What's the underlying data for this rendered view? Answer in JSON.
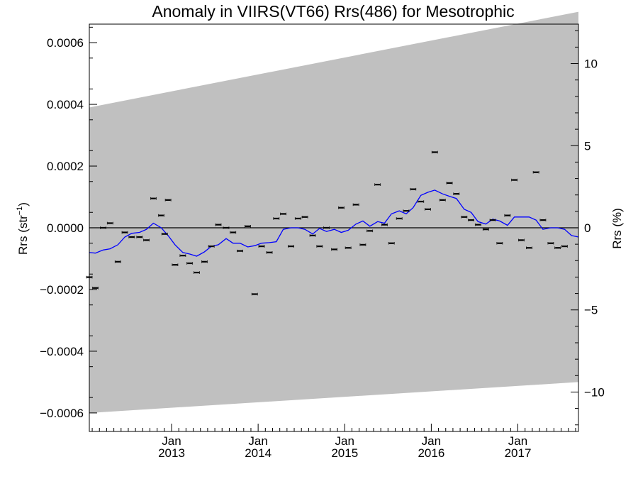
{
  "chart_data": {
    "type": "line",
    "title": "Anomaly in VIIRS(VT66) Rrs(486) for Mesotrophic",
    "ylabel_left": {
      "base": "Rrs (str",
      "superscript": "−1",
      "close": ")"
    },
    "ylabel_right": "Rrs (%)",
    "xlim": [
      2012.05,
      2017.7
    ],
    "ylim_left": [
      -0.00066,
      0.00066
    ],
    "ylim_right": [
      -12.4,
      12.4
    ],
    "y_ticks_left": [
      {
        "value": 0.0006,
        "label": "0.0006"
      },
      {
        "value": 0.0004,
        "label": "0.0004"
      },
      {
        "value": 0.0002,
        "label": "0.0002"
      },
      {
        "value": 0.0,
        "label": "0.0000"
      },
      {
        "value": -0.0002,
        "label": "−0.0002"
      },
      {
        "value": -0.0004,
        "label": "−0.0004"
      },
      {
        "value": -0.0006,
        "label": "−0.0006"
      }
    ],
    "y_ticks_right": [
      {
        "value": 10,
        "label": "10"
      },
      {
        "value": 5,
        "label": "5"
      },
      {
        "value": 0,
        "label": "0"
      },
      {
        "value": -5,
        "label": "−5"
      },
      {
        "value": -10,
        "label": "−10"
      }
    ],
    "x_ticks": [
      {
        "value": 2013.0,
        "month": "Jan",
        "year": "2013"
      },
      {
        "value": 2014.0,
        "month": "Jan",
        "year": "2014"
      },
      {
        "value": 2015.0,
        "month": "Jan",
        "year": "2015"
      },
      {
        "value": 2016.0,
        "month": "Jan",
        "year": "2016"
      },
      {
        "value": 2017.0,
        "month": "Jan",
        "year": "2017"
      }
    ],
    "uncertainty_band": {
      "color": "#c0c0c0",
      "upper": [
        [
          2012.05,
          0.00039
        ],
        [
          2017.7,
          0.0007
        ]
      ],
      "lower": [
        [
          2012.05,
          -0.0006
        ],
        [
          2017.7,
          -0.0005
        ]
      ]
    },
    "zero_line": 0,
    "series": [
      {
        "role": "monthly-points",
        "color": "#000000",
        "points": [
          [
            2012.05,
            -0.00016
          ],
          [
            2012.12,
            -0.000195
          ],
          [
            2012.21,
            0.0
          ],
          [
            2012.29,
            1.5e-05
          ],
          [
            2012.38,
            -0.00011
          ],
          [
            2012.46,
            -1.5e-05
          ],
          [
            2012.54,
            -3e-05
          ],
          [
            2012.63,
            -3e-05
          ],
          [
            2012.71,
            -4e-05
          ],
          [
            2012.79,
            9.5e-05
          ],
          [
            2012.88,
            4e-05
          ],
          [
            2012.92,
            -2e-05
          ],
          [
            2012.96,
            9e-05
          ],
          [
            2013.04,
            -0.00012
          ],
          [
            2013.13,
            -9e-05
          ],
          [
            2013.21,
            -0.000115
          ],
          [
            2013.29,
            -0.000145
          ],
          [
            2013.38,
            -0.00011
          ],
          [
            2013.46,
            -6e-05
          ],
          [
            2013.54,
            1e-05
          ],
          [
            2013.63,
            0.0
          ],
          [
            2013.71,
            -1.5e-05
          ],
          [
            2013.79,
            -7.5e-05
          ],
          [
            2013.88,
            5e-06
          ],
          [
            2013.96,
            -0.000215
          ],
          [
            2014.04,
            -6e-05
          ],
          [
            2014.13,
            -8e-05
          ],
          [
            2014.21,
            3e-05
          ],
          [
            2014.29,
            4.5e-05
          ],
          [
            2014.38,
            -6e-05
          ],
          [
            2014.46,
            3e-05
          ],
          [
            2014.54,
            3.5e-05
          ],
          [
            2014.63,
            -2.5e-05
          ],
          [
            2014.71,
            -6e-05
          ],
          [
            2014.79,
            0.0
          ],
          [
            2014.88,
            -7e-05
          ],
          [
            2014.96,
            6.5e-05
          ],
          [
            2015.04,
            -6.5e-05
          ],
          [
            2015.13,
            7.5e-05
          ],
          [
            2015.21,
            -5.5e-05
          ],
          [
            2015.29,
            -1e-05
          ],
          [
            2015.38,
            0.00014
          ],
          [
            2015.46,
            1e-05
          ],
          [
            2015.54,
            -5e-05
          ],
          [
            2015.63,
            3e-05
          ],
          [
            2015.71,
            5.5e-05
          ],
          [
            2015.79,
            0.000125
          ],
          [
            2015.88,
            8.5e-05
          ],
          [
            2015.96,
            6e-05
          ],
          [
            2016.04,
            0.000245
          ],
          [
            2016.13,
            9e-05
          ],
          [
            2016.21,
            0.000145
          ],
          [
            2016.29,
            0.00011
          ],
          [
            2016.38,
            3.5e-05
          ],
          [
            2016.46,
            2.5e-05
          ],
          [
            2016.54,
            1e-05
          ],
          [
            2016.63,
            -5e-06
          ],
          [
            2016.71,
            2.5e-05
          ],
          [
            2016.79,
            -5e-05
          ],
          [
            2016.88,
            4e-05
          ],
          [
            2016.96,
            0.000155
          ],
          [
            2017.04,
            -4e-05
          ],
          [
            2017.13,
            -6.5e-05
          ],
          [
            2017.21,
            0.00018
          ],
          [
            2017.29,
            2.5e-05
          ],
          [
            2017.38,
            -5e-05
          ],
          [
            2017.46,
            -6.5e-05
          ],
          [
            2017.54,
            -6e-05
          ]
        ]
      },
      {
        "role": "running-mean",
        "color": "#0000ff",
        "points": [
          [
            2012.05,
            -8e-05
          ],
          [
            2012.12,
            -8.2e-05
          ],
          [
            2012.21,
            -7.2e-05
          ],
          [
            2012.29,
            -6.8e-05
          ],
          [
            2012.38,
            -5.5e-05
          ],
          [
            2012.46,
            -3e-05
          ],
          [
            2012.54,
            -1.8e-05
          ],
          [
            2012.63,
            -1.5e-05
          ],
          [
            2012.71,
            -5e-06
          ],
          [
            2012.79,
            1.5e-05
          ],
          [
            2012.88,
            0.0
          ],
          [
            2012.96,
            -2.5e-05
          ],
          [
            2013.04,
            -5.5e-05
          ],
          [
            2013.13,
            -8e-05
          ],
          [
            2013.21,
            -8.5e-05
          ],
          [
            2013.29,
            -9.2e-05
          ],
          [
            2013.38,
            -7.8e-05
          ],
          [
            2013.46,
            -6e-05
          ],
          [
            2013.54,
            -5.5e-05
          ],
          [
            2013.63,
            -3.5e-05
          ],
          [
            2013.71,
            -5e-05
          ],
          [
            2013.79,
            -5e-05
          ],
          [
            2013.88,
            -6.2e-05
          ],
          [
            2013.96,
            -5.8e-05
          ],
          [
            2014.04,
            -5e-05
          ],
          [
            2014.13,
            -4.8e-05
          ],
          [
            2014.21,
            -4.5e-05
          ],
          [
            2014.29,
            -5e-06
          ],
          [
            2014.38,
            0.0
          ],
          [
            2014.46,
            0.0
          ],
          [
            2014.54,
            -5e-06
          ],
          [
            2014.63,
            -2e-05
          ],
          [
            2014.71,
            -2e-06
          ],
          [
            2014.79,
            -1.2e-05
          ],
          [
            2014.88,
            -5e-06
          ],
          [
            2014.96,
            -1.5e-05
          ],
          [
            2015.04,
            -8e-06
          ],
          [
            2015.13,
            1.2e-05
          ],
          [
            2015.21,
            2.2e-05
          ],
          [
            2015.29,
            5e-06
          ],
          [
            2015.38,
            2e-05
          ],
          [
            2015.46,
            1.5e-05
          ],
          [
            2015.54,
            4.5e-05
          ],
          [
            2015.63,
            5.5e-05
          ],
          [
            2015.71,
            4.5e-05
          ],
          [
            2015.79,
            6.5e-05
          ],
          [
            2015.88,
            0.000105
          ],
          [
            2015.96,
            0.000115
          ],
          [
            2016.04,
            0.000122
          ],
          [
            2016.13,
            0.00011
          ],
          [
            2016.21,
            0.000102
          ],
          [
            2016.29,
            9.5e-05
          ],
          [
            2016.38,
            6e-05
          ],
          [
            2016.46,
            5e-05
          ],
          [
            2016.54,
            2e-05
          ],
          [
            2016.63,
            1.2e-05
          ],
          [
            2016.71,
            2.8e-05
          ],
          [
            2016.79,
            2.2e-05
          ],
          [
            2016.88,
            8e-06
          ],
          [
            2016.96,
            3.5e-05
          ],
          [
            2017.04,
            3.5e-05
          ],
          [
            2017.13,
            3.5e-05
          ],
          [
            2017.21,
            2.5e-05
          ],
          [
            2017.29,
            -5e-06
          ],
          [
            2017.38,
            0.0
          ],
          [
            2017.46,
            0.0
          ],
          [
            2017.54,
            -5e-06
          ],
          [
            2017.62,
            -2.5e-05
          ],
          [
            2017.7,
            -3e-05
          ]
        ]
      }
    ]
  }
}
